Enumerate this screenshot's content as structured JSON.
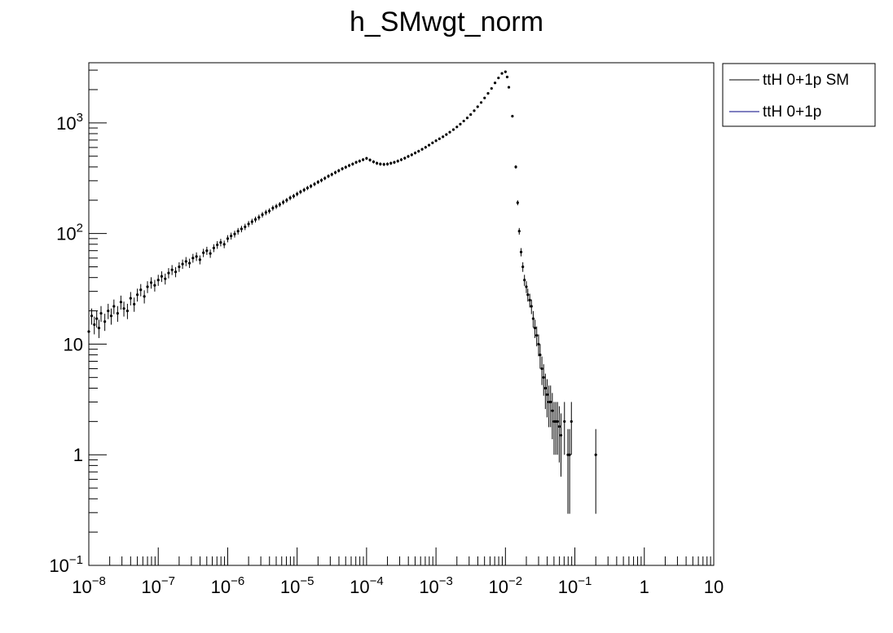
{
  "chart_data": {
    "type": "scatter",
    "title": "h_SMwgt_norm",
    "xlabel": "",
    "ylabel": "",
    "x_scale": "log",
    "y_scale": "log",
    "xlim": [
      1e-08,
      10
    ],
    "ylim": [
      0.1,
      3500
    ],
    "grid": false,
    "legend_position": "top-right, outside plot",
    "legend": [
      {
        "name": "ttH 0+1p SM",
        "color": "#000000"
      },
      {
        "name": "ttH 0+1p",
        "color": "#000080"
      }
    ],
    "x_tick_labels": [
      {
        "value": 1e-08,
        "base": "10",
        "exp": "−8"
      },
      {
        "value": 1e-07,
        "base": "10",
        "exp": "−7"
      },
      {
        "value": 1e-06,
        "base": "10",
        "exp": "−6"
      },
      {
        "value": 1e-05,
        "base": "10",
        "exp": "−5"
      },
      {
        "value": 0.0001,
        "base": "10",
        "exp": "−4"
      },
      {
        "value": 0.001,
        "base": "10",
        "exp": "−3"
      },
      {
        "value": 0.01,
        "base": "10",
        "exp": "−2"
      },
      {
        "value": 0.1,
        "base": "10",
        "exp": "−1"
      },
      {
        "value": 1,
        "base": "1",
        "exp": ""
      },
      {
        "value": 10,
        "base": "10",
        "exp": ""
      }
    ],
    "y_tick_labels": [
      {
        "value": 0.1,
        "base": "10",
        "exp": "−1"
      },
      {
        "value": 1,
        "base": "1",
        "exp": ""
      },
      {
        "value": 10,
        "base": "10",
        "exp": ""
      },
      {
        "value": 100,
        "base": "10",
        "exp": "2"
      },
      {
        "value": 1000,
        "base": "10",
        "exp": "3"
      }
    ],
    "series": [
      {
        "name": "ttH 0+1p SM",
        "points": [
          [
            1e-08,
            13
          ],
          [
            1.1e-08,
            18
          ],
          [
            1.2e-08,
            15
          ],
          [
            1.3e-08,
            17
          ],
          [
            1.4e-08,
            14
          ],
          [
            1.5e-08,
            19
          ],
          [
            1.7e-08,
            16
          ],
          [
            1.9e-08,
            20
          ],
          [
            2.1e-08,
            18
          ],
          [
            2.3e-08,
            22
          ],
          [
            2.6e-08,
            19
          ],
          [
            2.9e-08,
            24
          ],
          [
            3.2e-08,
            21
          ],
          [
            3.6e-08,
            20
          ],
          [
            4e-08,
            26
          ],
          [
            4.5e-08,
            23
          ],
          [
            5e-08,
            28
          ],
          [
            5.6e-08,
            31
          ],
          [
            6.3e-08,
            27
          ],
          [
            7e-08,
            33
          ],
          [
            7.9e-08,
            36
          ],
          [
            8.9e-08,
            34
          ],
          [
            1e-07,
            38
          ],
          [
            1.12e-07,
            41
          ],
          [
            1.26e-07,
            39
          ],
          [
            1.41e-07,
            44
          ],
          [
            1.58e-07,
            47
          ],
          [
            1.78e-07,
            45
          ],
          [
            2e-07,
            50
          ],
          [
            2.24e-07,
            53
          ],
          [
            2.51e-07,
            56
          ],
          [
            2.82e-07,
            54
          ],
          [
            3.16e-07,
            60
          ],
          [
            3.55e-07,
            62
          ],
          [
            3.98e-07,
            58
          ],
          [
            4.47e-07,
            67
          ],
          [
            5.01e-07,
            70
          ],
          [
            5.62e-07,
            66
          ],
          [
            6.31e-07,
            74
          ],
          [
            7.08e-07,
            79
          ],
          [
            7.94e-07,
            83
          ],
          [
            8.91e-07,
            80
          ],
          [
            1e-06,
            90
          ],
          [
            1.12e-06,
            95
          ],
          [
            1.26e-06,
            99
          ],
          [
            1.41e-06,
            105
          ],
          [
            1.58e-06,
            110
          ],
          [
            1.78e-06,
            115
          ],
          [
            2e-06,
            122
          ],
          [
            2.24e-06,
            128
          ],
          [
            2.51e-06,
            134
          ],
          [
            2.82e-06,
            140
          ],
          [
            3.16e-06,
            148
          ],
          [
            3.55e-06,
            155
          ],
          [
            3.98e-06,
            160
          ],
          [
            4.47e-06,
            170
          ],
          [
            5.01e-06,
            176
          ],
          [
            5.62e-06,
            183
          ],
          [
            6.31e-06,
            192
          ],
          [
            7.08e-06,
            200
          ],
          [
            7.94e-06,
            210
          ],
          [
            8.91e-06,
            218
          ],
          [
            1e-05,
            228
          ],
          [
            1.12e-05,
            238
          ],
          [
            1.26e-05,
            248
          ],
          [
            1.41e-05,
            258
          ],
          [
            1.58e-05,
            268
          ],
          [
            1.78e-05,
            280
          ],
          [
            2e-05,
            292
          ],
          [
            2.24e-05,
            303
          ],
          [
            2.51e-05,
            316
          ],
          [
            2.82e-05,
            330
          ],
          [
            3.16e-05,
            342
          ],
          [
            3.55e-05,
            356
          ],
          [
            3.98e-05,
            370
          ],
          [
            4.47e-05,
            385
          ],
          [
            5.01e-05,
            398
          ],
          [
            5.62e-05,
            412
          ],
          [
            6.31e-05,
            425
          ],
          [
            7.08e-05,
            440
          ],
          [
            7.94e-05,
            452
          ],
          [
            8.91e-05,
            465
          ],
          [
            0.0001,
            478
          ],
          [
            0.000112,
            462
          ],
          [
            0.000126,
            445
          ],
          [
            0.000141,
            432
          ],
          [
            0.000158,
            425
          ],
          [
            0.000178,
            422
          ],
          [
            0.0002,
            425
          ],
          [
            0.000224,
            432
          ],
          [
            0.000251,
            440
          ],
          [
            0.000282,
            452
          ],
          [
            0.000316,
            465
          ],
          [
            0.000355,
            480
          ],
          [
            0.000398,
            498
          ],
          [
            0.000447,
            515
          ],
          [
            0.000501,
            535
          ],
          [
            0.000562,
            555
          ],
          [
            0.000631,
            578
          ],
          [
            0.000708,
            602
          ],
          [
            0.000794,
            630
          ],
          [
            0.000891,
            660
          ],
          [
            0.001,
            690
          ],
          [
            0.00112,
            718
          ],
          [
            0.00126,
            750
          ],
          [
            0.00141,
            785
          ],
          [
            0.00158,
            825
          ],
          [
            0.00178,
            870
          ],
          [
            0.002,
            920
          ],
          [
            0.00224,
            975
          ],
          [
            0.00251,
            1040
          ],
          [
            0.00282,
            1110
          ],
          [
            0.00316,
            1190
          ],
          [
            0.00355,
            1290
          ],
          [
            0.00398,
            1400
          ],
          [
            0.00447,
            1530
          ],
          [
            0.00501,
            1680
          ],
          [
            0.00562,
            1850
          ],
          [
            0.00631,
            2050
          ],
          [
            0.00708,
            2300
          ],
          [
            0.00794,
            2550
          ],
          [
            0.00891,
            2800
          ],
          [
            0.01,
            2900
          ],
          [
            0.0106,
            2600
          ],
          [
            0.0112,
            2100
          ],
          [
            0.0126,
            1150
          ],
          [
            0.0141,
            400
          ],
          [
            0.015,
            190
          ],
          [
            0.0158,
            105
          ],
          [
            0.0168,
            68
          ],
          [
            0.0178,
            50
          ],
          [
            0.0188,
            38
          ],
          [
            0.02,
            33
          ],
          [
            0.021,
            28
          ],
          [
            0.0224,
            25
          ],
          [
            0.0237,
            22
          ],
          [
            0.0251,
            17
          ],
          [
            0.0266,
            14
          ],
          [
            0.0282,
            12
          ],
          [
            0.03,
            10
          ],
          [
            0.0316,
            8
          ],
          [
            0.0335,
            6
          ],
          [
            0.0355,
            5
          ],
          [
            0.0376,
            4
          ],
          [
            0.0398,
            3.5
          ],
          [
            0.0422,
            3
          ],
          [
            0.0447,
            3
          ],
          [
            0.0473,
            2.5
          ],
          [
            0.0501,
            2
          ],
          [
            0.0531,
            2
          ],
          [
            0.0562,
            2
          ],
          [
            0.0596,
            1.8
          ],
          [
            0.0631,
            1.5
          ],
          [
            0.0708,
            2
          ],
          [
            0.0794,
            1
          ],
          [
            0.084,
            1
          ],
          [
            0.0891,
            2
          ],
          [
            0.2,
            1
          ]
        ]
      }
    ]
  }
}
